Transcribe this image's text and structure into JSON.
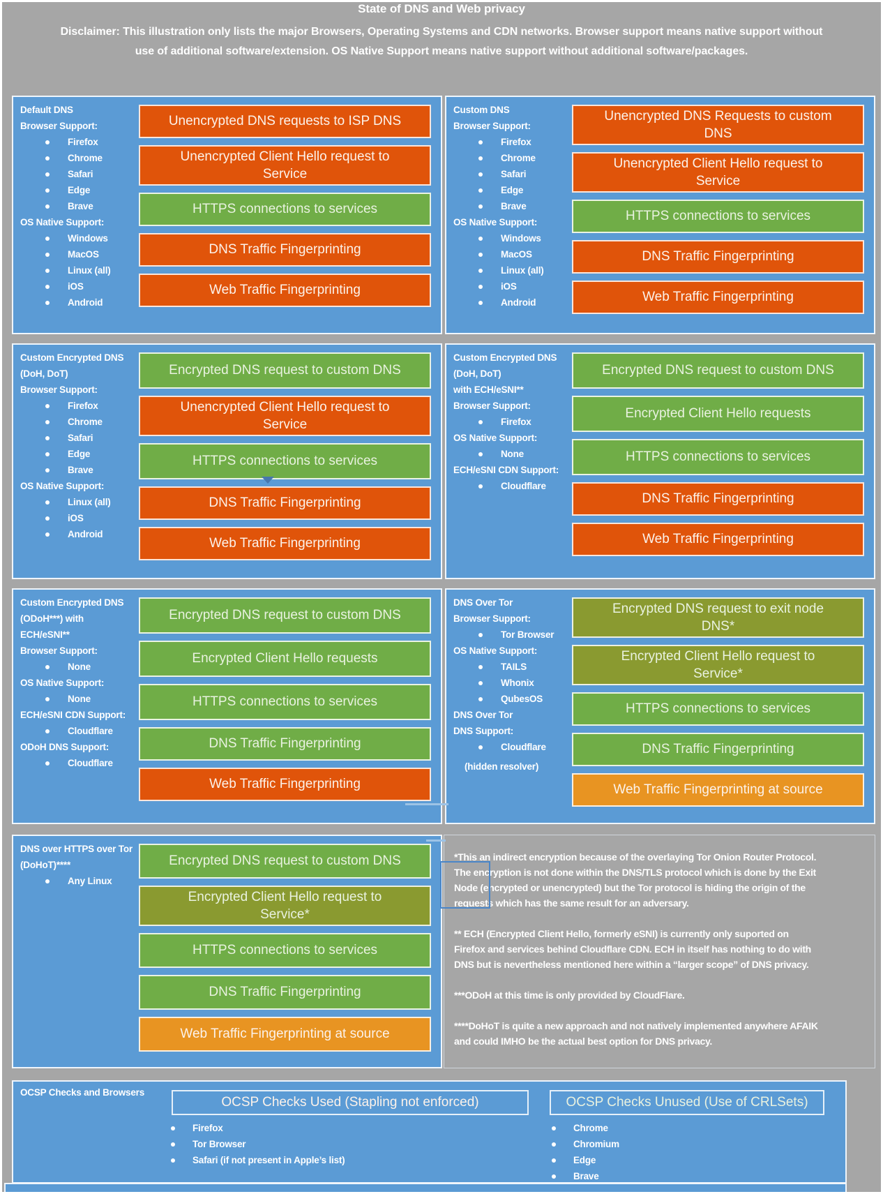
{
  "header": {
    "title": "State of DNS and Web privacy",
    "disclaimer": "Disclaimer: This illustration only lists the major Browsers, Operating Systems and CDN networks. Browser support means native support without use of additional software/extension. OS Native Support means native support without additional software/packages."
  },
  "colors": {
    "background": "#A6A6A6",
    "panel_blue": "#5B9BD5",
    "orange": "#E0540A",
    "green": "#70AD47",
    "olive": "#8A9A30",
    "amber": "#E89422"
  },
  "panels": [
    {
      "id": "p1",
      "name": "panel-default-dns",
      "sidebar": [
        {
          "t": "h",
          "text": "Default DNS"
        },
        {
          "t": "h",
          "text": "Browser Support:"
        },
        {
          "t": "b",
          "text": "Firefox"
        },
        {
          "t": "b",
          "text": "Chrome"
        },
        {
          "t": "b",
          "text": "Safari"
        },
        {
          "t": "b",
          "text": "Edge"
        },
        {
          "t": "b",
          "text": "Brave"
        },
        {
          "t": "h",
          "text": "OS Native Support:"
        },
        {
          "t": "b",
          "text": "Windows"
        },
        {
          "t": "b",
          "text": "MacOS"
        },
        {
          "t": "b",
          "text": "Linux (all)"
        },
        {
          "t": "b",
          "text": "iOS"
        },
        {
          "t": "b",
          "text": "Android"
        }
      ],
      "bars": [
        {
          "text": "Unencrypted DNS requests to ISP DNS",
          "tone": "orange"
        },
        {
          "text": "Unencrypted Client Hello request to Service",
          "tone": "orange"
        },
        {
          "text": "HTTPS connections to services",
          "tone": "green"
        },
        {
          "text": "DNS Traffic Fingerprinting",
          "tone": "orange"
        },
        {
          "text": "Web Traffic Fingerprinting",
          "tone": "orange"
        }
      ]
    },
    {
      "id": "p2",
      "name": "panel-custom-dns",
      "sidebar": [
        {
          "t": "h",
          "text": "Custom DNS"
        },
        {
          "t": "h",
          "text": "Browser Support:"
        },
        {
          "t": "b",
          "text": "Firefox"
        },
        {
          "t": "b",
          "text": "Chrome"
        },
        {
          "t": "b",
          "text": "Safari"
        },
        {
          "t": "b",
          "text": "Edge"
        },
        {
          "t": "b",
          "text": "Brave"
        },
        {
          "t": "h",
          "text": "OS Native Support:"
        },
        {
          "t": "b",
          "text": "Windows"
        },
        {
          "t": "b",
          "text": "MacOS"
        },
        {
          "t": "b",
          "text": "Linux (all)"
        },
        {
          "t": "b",
          "text": "iOS"
        },
        {
          "t": "b",
          "text": "Android"
        }
      ],
      "bars": [
        {
          "text": "Unencrypted DNS Requests to custom DNS",
          "tone": "orange"
        },
        {
          "text": "Unencrypted Client Hello request to Service",
          "tone": "orange"
        },
        {
          "text": "HTTPS connections to services",
          "tone": "green"
        },
        {
          "text": "DNS Traffic Fingerprinting",
          "tone": "orange"
        },
        {
          "text": "Web Traffic Fingerprinting",
          "tone": "orange"
        }
      ]
    },
    {
      "id": "p3",
      "name": "panel-custom-encrypted-dns-doh-dot",
      "sidebar": [
        {
          "t": "h",
          "text": "Custom Encrypted DNS"
        },
        {
          "t": "h",
          "text": "(DoH, DoT)"
        },
        {
          "t": "h",
          "text": "Browser Support:"
        },
        {
          "t": "b",
          "text": "Firefox"
        },
        {
          "t": "b",
          "text": "Chrome"
        },
        {
          "t": "b",
          "text": "Safari"
        },
        {
          "t": "b",
          "text": "Edge"
        },
        {
          "t": "b",
          "text": "Brave"
        },
        {
          "t": "h",
          "text": "OS Native Support:"
        },
        {
          "t": "b",
          "text": "Linux (all)"
        },
        {
          "t": "b",
          "text": "iOS"
        },
        {
          "t": "b",
          "text": "Android"
        }
      ],
      "bars": [
        {
          "text": "Encrypted DNS request to custom DNS",
          "tone": "green"
        },
        {
          "text": "Unencrypted Client Hello request to Service",
          "tone": "orange"
        },
        {
          "text": "HTTPS connections to services",
          "tone": "green"
        },
        {
          "text": "DNS Traffic Fingerprinting",
          "tone": "orange"
        },
        {
          "text": "Web Traffic Fingerprinting",
          "tone": "orange"
        }
      ]
    },
    {
      "id": "p4",
      "name": "panel-custom-encrypted-dns-doh-dot-ech-esni",
      "sidebar": [
        {
          "t": "h",
          "text": "Custom Encrypted DNS"
        },
        {
          "t": "h",
          "text": "(DoH, DoT)"
        },
        {
          "t": "h",
          "text": "with ECH/eSNI**"
        },
        {
          "t": "h",
          "text": "Browser Support:"
        },
        {
          "t": "b",
          "text": "Firefox"
        },
        {
          "t": "h",
          "text": "OS Native Support:"
        },
        {
          "t": "b",
          "text": "None"
        },
        {
          "t": "h",
          "text": "ECH/eSNI CDN Support:"
        },
        {
          "t": "b",
          "text": "Cloudflare"
        }
      ],
      "bars": [
        {
          "text": "Encrypted DNS request to custom DNS",
          "tone": "green"
        },
        {
          "text": "Encrypted Client Hello requests",
          "tone": "green"
        },
        {
          "text": "HTTPS connections to services",
          "tone": "green"
        },
        {
          "text": "DNS Traffic Fingerprinting",
          "tone": "orange"
        },
        {
          "text": "Web Traffic Fingerprinting",
          "tone": "orange"
        }
      ]
    },
    {
      "id": "p5",
      "name": "panel-custom-encrypted-dns-odoh-ech-esni",
      "sidebar": [
        {
          "t": "h",
          "text": "Custom Encrypted DNS"
        },
        {
          "t": "h",
          "text": "(ODoH***) with"
        },
        {
          "t": "h",
          "text": "ECH/eSNI**"
        },
        {
          "t": "h",
          "text": "Browser Support:"
        },
        {
          "t": "b",
          "text": "None"
        },
        {
          "t": "h",
          "text": "OS Native Support:"
        },
        {
          "t": "b",
          "text": "None"
        },
        {
          "t": "h",
          "text": "ECH/eSNI CDN Support:"
        },
        {
          "t": "b",
          "text": "Cloudflare"
        },
        {
          "t": "h",
          "text": "ODoH DNS Support:"
        },
        {
          "t": "b",
          "text": "Cloudflare"
        }
      ],
      "bars": [
        {
          "text": "Encrypted DNS request to custom DNS",
          "tone": "green"
        },
        {
          "text": "Encrypted Client Hello requests",
          "tone": "green"
        },
        {
          "text": "HTTPS connections to services",
          "tone": "green"
        },
        {
          "text": "DNS Traffic Fingerprinting",
          "tone": "green"
        },
        {
          "text": "Web Traffic Fingerprinting",
          "tone": "orange"
        }
      ]
    },
    {
      "id": "p6",
      "name": "panel-dns-over-tor",
      "sidebar": [
        {
          "t": "h",
          "text": "DNS Over Tor"
        },
        {
          "t": "h",
          "text": "Browser Support:"
        },
        {
          "t": "b",
          "text": "Tor Browser"
        },
        {
          "t": "h",
          "text": "OS Native Support:"
        },
        {
          "t": "b",
          "text": "TAILS"
        },
        {
          "t": "b",
          "text": "Whonix"
        },
        {
          "t": "b",
          "text": "QubesOS"
        },
        {
          "t": "h",
          "text": "DNS Over Tor"
        },
        {
          "t": "h",
          "text": "DNS Support:"
        },
        {
          "t": "b",
          "text": "Cloudflare"
        },
        {
          "t": "s",
          "text": "(hidden resolver)"
        }
      ],
      "bars": [
        {
          "text": "Encrypted DNS request to exit node DNS*",
          "tone": "olive"
        },
        {
          "text": "Encrypted Client Hello request to Service*",
          "tone": "olive"
        },
        {
          "text": "HTTPS connections to services",
          "tone": "green"
        },
        {
          "text": "DNS Traffic Fingerprinting",
          "tone": "green"
        },
        {
          "text": "Web Traffic Fingerprinting at source",
          "tone": "amber"
        }
      ]
    },
    {
      "id": "p7",
      "name": "panel-dns-over-https-over-tor",
      "sidebar": [
        {
          "t": "h",
          "text": "DNS over HTTPS over Tor"
        },
        {
          "t": "h",
          "text": "(DoHoT)****"
        },
        {
          "t": "b",
          "text": "Any Linux"
        }
      ],
      "bars": [
        {
          "text": "Encrypted DNS request to custom DNS",
          "tone": "green"
        },
        {
          "text": "Encrypted Client Hello request to Service*",
          "tone": "olive"
        },
        {
          "text": "HTTPS connections to services",
          "tone": "green"
        },
        {
          "text": "DNS Traffic Fingerprinting",
          "tone": "green"
        },
        {
          "text": "Web Traffic Fingerprinting at source",
          "tone": "amber"
        }
      ]
    }
  ],
  "notes": {
    "paragraphs": [
      "*This an indirect encryption because of the overlaying Tor Onion Router Protocol. The encryption is not done within the DNS/TLS protocol which is done by the Exit Node (encrypted or unencrypted) but the Tor protocol is hiding the origin of the requests which has the same result for an adversary.",
      "** ECH (Encrypted Client Hello, formerly eSNI) is currently only suported on Firefox and services behind Cloudflare CDN. ECH in itself has nothing to do with DNS but is nevertheless mentioned here within a “larger scope” of DNS privacy.",
      "***ODoH at this time is only provided by CloudFlare.",
      "****DoHoT is quite a new approach and not natively implemented anywhere AFAIK and could IMHO be the actual best option for DNS privacy."
    ]
  },
  "ocsp": {
    "label": "OCSP Checks and Browsers",
    "used": {
      "header": "OCSP Checks Used (Stapling not enforced)",
      "items": [
        "Firefox",
        "Tor Browser",
        "Safari (if not present in Apple’s list)"
      ]
    },
    "unused": {
      "header": "OCSP Checks Unused (Use of CRLSets)",
      "items": [
        "Chrome",
        "Chromium",
        "Edge",
        "Brave"
      ]
    }
  }
}
